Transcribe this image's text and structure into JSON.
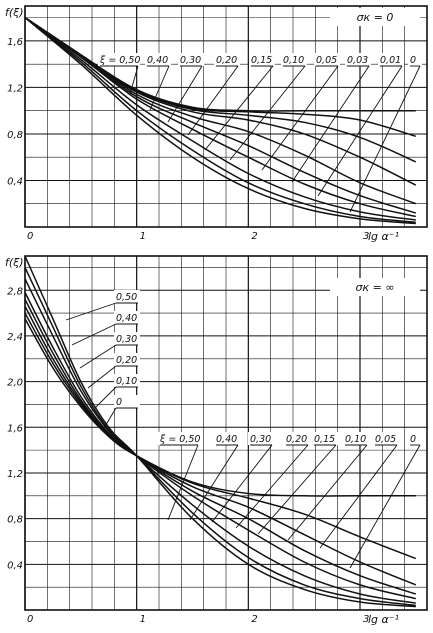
{
  "chart_data": [
    {
      "type": "line",
      "ylabel": "f(ξ)",
      "xlabel": "lg α⁻¹",
      "annotation": "σк = 0",
      "xlim": [
        0,
        3.6
      ],
      "ylim": [
        0,
        1.9
      ],
      "x_ticks": [
        "0",
        "1",
        "2",
        "3"
      ],
      "y_ticks": [
        "0,4",
        "0,8",
        "1,2",
        "1,6"
      ],
      "grid": true,
      "curve_labels": [
        "ξ = 0,50",
        "0,40",
        "0,30",
        "0,20",
        "0,15",
        "0,10",
        "0,05",
        "0,03",
        "0,01",
        "0"
      ],
      "series": [
        {
          "name": "ξ = 0,50",
          "x": [
            0,
            0.5,
            1.0,
            1.5,
            2.0,
            2.5,
            3.0,
            3.5
          ],
          "y": [
            1.8,
            1.4,
            0.96,
            0.6,
            0.33,
            0.16,
            0.07,
            0.03
          ]
        },
        {
          "name": "0,40",
          "x": [
            0,
            0.5,
            1.0,
            1.5,
            2.0,
            2.5,
            3.0,
            3.5
          ],
          "y": [
            1.8,
            1.42,
            1.0,
            0.66,
            0.38,
            0.2,
            0.09,
            0.04
          ]
        },
        {
          "name": "0,30",
          "x": [
            0,
            0.5,
            1.0,
            1.5,
            2.0,
            2.5,
            3.0,
            3.5
          ],
          "y": [
            1.8,
            1.44,
            1.05,
            0.74,
            0.46,
            0.26,
            0.13,
            0.06
          ]
        },
        {
          "name": "0,20",
          "x": [
            0,
            0.5,
            1.0,
            1.5,
            2.0,
            2.5,
            3.0,
            3.5
          ],
          "y": [
            1.8,
            1.46,
            1.1,
            0.84,
            0.6,
            0.37,
            0.2,
            0.09
          ]
        },
        {
          "name": "0,15",
          "x": [
            0,
            0.5,
            1.0,
            1.5,
            2.0,
            2.5,
            3.0,
            3.5
          ],
          "y": [
            1.8,
            1.47,
            1.12,
            0.9,
            0.7,
            0.47,
            0.27,
            0.12
          ]
        },
        {
          "name": "0,10",
          "x": [
            0,
            0.5,
            1.0,
            1.5,
            2.0,
            2.5,
            3.0,
            3.5
          ],
          "y": [
            1.8,
            1.48,
            1.14,
            0.95,
            0.82,
            0.62,
            0.38,
            0.2
          ]
        },
        {
          "name": "0,05",
          "x": [
            0,
            0.5,
            1.0,
            1.5,
            2.0,
            2.5,
            3.0,
            3.5
          ],
          "y": [
            1.8,
            1.48,
            1.16,
            0.99,
            0.92,
            0.8,
            0.6,
            0.36
          ]
        },
        {
          "name": "0,03",
          "x": [
            0,
            0.5,
            1.0,
            1.5,
            2.0,
            2.5,
            3.0,
            3.5
          ],
          "y": [
            1.8,
            1.48,
            1.17,
            1.01,
            0.96,
            0.9,
            0.77,
            0.56
          ]
        },
        {
          "name": "0,01",
          "x": [
            0,
            0.5,
            1.0,
            1.5,
            2.0,
            2.5,
            3.0,
            3.5
          ],
          "y": [
            1.8,
            1.48,
            1.18,
            1.02,
            0.99,
            0.97,
            0.92,
            0.78
          ]
        },
        {
          "name": "0",
          "x": [
            0,
            0.5,
            1.0,
            1.5,
            2.0,
            2.5,
            3.0,
            3.5
          ],
          "y": [
            1.8,
            1.48,
            1.18,
            1.03,
            1.0,
            1.0,
            1.0,
            1.0
          ]
        }
      ]
    },
    {
      "type": "line",
      "ylabel": "f(ξ)",
      "xlabel": "lg α⁻¹",
      "annotation": "σк = ∞",
      "xlim": [
        0,
        3.6
      ],
      "ylim": [
        0,
        3.1
      ],
      "x_ticks": [
        "0",
        "1",
        "2",
        "3"
      ],
      "y_ticks": [
        "0,4",
        "0,8",
        "1,2",
        "1,6",
        "2,0",
        "2,4",
        "2,8"
      ],
      "grid": true,
      "upper_labels": [
        "0,50",
        "0,40",
        "0,30",
        "0,20",
        "0,10",
        "0"
      ],
      "curve_labels": [
        "ξ = 0,50",
        "0,40",
        "0,30",
        "0,20",
        "0,15",
        "0,10",
        "0,05",
        "0"
      ],
      "series": [
        {
          "name": "ξ = 0,50",
          "x": [
            0,
            0.25,
            0.5,
            0.75,
            1.0,
            1.5,
            2.0,
            2.5,
            3.0,
            3.5
          ],
          "y": [
            3.1,
            2.55,
            2.0,
            1.6,
            1.35,
            0.8,
            0.4,
            0.18,
            0.07,
            0.03
          ]
        },
        {
          "name": "0,40",
          "x": [
            0,
            0.25,
            0.5,
            0.75,
            1.0,
            1.5,
            2.0,
            2.5,
            3.0,
            3.5
          ],
          "y": [
            3.0,
            2.48,
            1.96,
            1.58,
            1.35,
            0.85,
            0.46,
            0.22,
            0.1,
            0.04
          ]
        },
        {
          "name": "0,30",
          "x": [
            0,
            0.25,
            0.5,
            0.75,
            1.0,
            1.5,
            2.0,
            2.5,
            3.0,
            3.5
          ],
          "y": [
            2.9,
            2.4,
            1.92,
            1.57,
            1.35,
            0.92,
            0.56,
            0.3,
            0.14,
            0.06
          ]
        },
        {
          "name": "0,20",
          "x": [
            0,
            0.25,
            0.5,
            0.75,
            1.0,
            1.5,
            2.0,
            2.5,
            3.0,
            3.5
          ],
          "y": [
            2.78,
            2.3,
            1.87,
            1.55,
            1.35,
            1.0,
            0.7,
            0.42,
            0.22,
            0.1
          ]
        },
        {
          "name": "0,15",
          "x": [
            0,
            0.25,
            0.5,
            0.75,
            1.0,
            1.5,
            2.0,
            2.5,
            3.0,
            3.5
          ],
          "y": [
            2.72,
            2.25,
            1.84,
            1.54,
            1.35,
            1.04,
            0.8,
            0.52,
            0.3,
            0.14
          ]
        },
        {
          "name": "0,10",
          "x": [
            0,
            0.25,
            0.5,
            0.75,
            1.0,
            1.5,
            2.0,
            2.5,
            3.0,
            3.5
          ],
          "y": [
            2.66,
            2.2,
            1.82,
            1.53,
            1.35,
            1.08,
            0.9,
            0.66,
            0.42,
            0.22
          ]
        },
        {
          "name": "0,05",
          "x": [
            0,
            0.25,
            0.5,
            0.75,
            1.0,
            1.5,
            2.0,
            2.5,
            3.0,
            3.5
          ],
          "y": [
            2.6,
            2.16,
            1.8,
            1.52,
            1.35,
            1.11,
            0.98,
            0.84,
            0.64,
            0.45
          ]
        },
        {
          "name": "0",
          "x": [
            0,
            0.25,
            0.5,
            0.75,
            1.0,
            1.5,
            2.0,
            2.5,
            3.0,
            3.5
          ],
          "y": [
            2.55,
            2.12,
            1.78,
            1.52,
            1.35,
            1.12,
            1.02,
            1.0,
            1.0,
            1.0
          ]
        }
      ]
    }
  ]
}
